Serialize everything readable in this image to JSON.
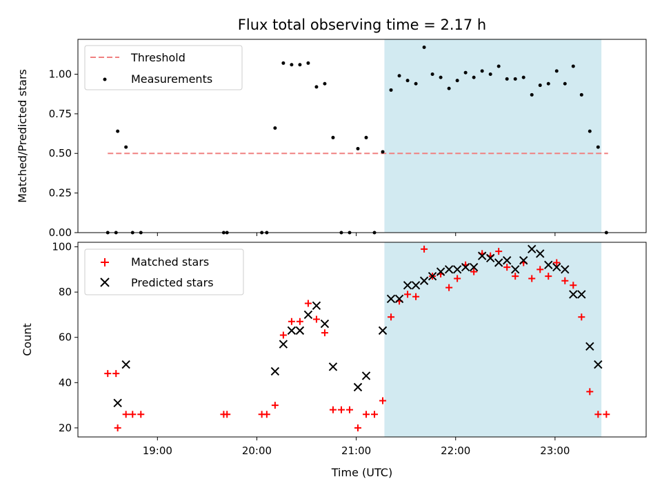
{
  "chart_data": [
    {
      "type": "scatter",
      "title": "Flux total observing time = 2.17 h",
      "ylabel": "Matched/Predicted stars",
      "xlabel": "",
      "xlim": [
        "18:12",
        "23:55"
      ],
      "ylim": [
        0,
        1.22
      ],
      "x_ticks": [
        "19:00",
        "20:00",
        "21:00",
        "22:00",
        "23:00"
      ],
      "y_ticks": [
        "0.00",
        "0.25",
        "0.50",
        "0.75",
        "1.00"
      ],
      "shaded_interval": {
        "start": "21:17",
        "end": "23:28",
        "color": "#add8e6"
      },
      "legend": {
        "placement": "top-left",
        "entries": [
          "Threshold",
          "Measurements"
        ]
      },
      "threshold": {
        "name": "Threshold",
        "value": 0.5,
        "x_start": "18:30",
        "x_end": "23:32",
        "color": "#f08080"
      },
      "series": [
        {
          "name": "Measurements",
          "color": "#000000",
          "x": [
            "18:30",
            "18:35",
            "18:36",
            "18:41",
            "18:45",
            "18:50",
            "19:40",
            "19:42",
            "20:03",
            "20:06",
            "20:11",
            "20:16",
            "20:21",
            "20:26",
            "20:31",
            "20:36",
            "20:41",
            "20:46",
            "20:51",
            "20:56",
            "21:01",
            "21:06",
            "21:11",
            "21:16",
            "21:21",
            "21:26",
            "21:31",
            "21:36",
            "21:41",
            "21:46",
            "21:51",
            "21:56",
            "22:01",
            "22:06",
            "22:11",
            "22:16",
            "22:21",
            "22:26",
            "22:31",
            "22:36",
            "22:41",
            "22:46",
            "22:51",
            "22:56",
            "23:01",
            "23:06",
            "23:11",
            "23:16",
            "23:21",
            "23:26",
            "23:31"
          ],
          "y": [
            0,
            0,
            0.64,
            0.54,
            0,
            0,
            0,
            0,
            0,
            0,
            0.66,
            1.07,
            1.06,
            1.06,
            1.07,
            0.92,
            0.94,
            0.6,
            0,
            0,
            0.53,
            0.6,
            0,
            0.51,
            0.9,
            0.99,
            0.96,
            0.94,
            1.17,
            1.0,
            0.98,
            0.91,
            0.96,
            1.01,
            0.98,
            1.02,
            1.0,
            1.05,
            0.97,
            0.97,
            0.98,
            0.87,
            0.93,
            0.94,
            1.02,
            0.94,
            1.05,
            0.87,
            0.64,
            0.54,
            0
          ]
        }
      ]
    },
    {
      "type": "scatter",
      "title": "",
      "xlabel": "Time (UTC)",
      "ylabel": "Count",
      "xlim": [
        "18:12",
        "23:55"
      ],
      "ylim": [
        16,
        102
      ],
      "x_ticks": [
        "19:00",
        "20:00",
        "21:00",
        "22:00",
        "23:00"
      ],
      "y_ticks": [
        "20",
        "40",
        "60",
        "80",
        "100"
      ],
      "shaded_interval": {
        "start": "21:17",
        "end": "23:28",
        "color": "#add8e6"
      },
      "legend": {
        "placement": "top-left",
        "entries": [
          "Matched stars",
          "Predicted stars"
        ]
      },
      "series": [
        {
          "name": "Matched stars",
          "marker": "plus",
          "color": "#ff0000",
          "x": [
            "18:30",
            "18:35",
            "18:36",
            "18:41",
            "18:45",
            "18:50",
            "19:40",
            "19:42",
            "20:03",
            "20:06",
            "20:11",
            "20:16",
            "20:21",
            "20:26",
            "20:31",
            "20:36",
            "20:41",
            "20:46",
            "20:51",
            "20:56",
            "21:01",
            "21:06",
            "21:11",
            "21:16",
            "21:21",
            "21:26",
            "21:31",
            "21:36",
            "21:41",
            "21:46",
            "21:51",
            "21:56",
            "22:01",
            "22:06",
            "22:11",
            "22:16",
            "22:21",
            "22:26",
            "22:31",
            "22:36",
            "22:41",
            "22:46",
            "22:51",
            "22:56",
            "23:01",
            "23:06",
            "23:11",
            "23:16",
            "23:21",
            "23:26",
            "23:31"
          ],
          "y": [
            44,
            44,
            20,
            26,
            26,
            26,
            26,
            26,
            26,
            26,
            30,
            61,
            67,
            67,
            75,
            68,
            62,
            28,
            28,
            28,
            20,
            26,
            26,
            32,
            69,
            76,
            79,
            78,
            99,
            87,
            88,
            82,
            86,
            92,
            89,
            97,
            96,
            98,
            91,
            87,
            93,
            86,
            90,
            87,
            93,
            85,
            83,
            69,
            36,
            26,
            26
          ]
        },
        {
          "name": "Predicted stars",
          "marker": "x",
          "color": "#000000",
          "x": [
            "18:36",
            "18:41",
            "20:11",
            "20:16",
            "20:21",
            "20:26",
            "20:31",
            "20:36",
            "20:41",
            "20:46",
            "21:01",
            "21:06",
            "21:16",
            "21:21",
            "21:26",
            "21:31",
            "21:36",
            "21:41",
            "21:46",
            "21:51",
            "21:56",
            "22:01",
            "22:06",
            "22:11",
            "22:16",
            "22:21",
            "22:26",
            "22:31",
            "22:36",
            "22:41",
            "22:46",
            "22:51",
            "22:56",
            "23:01",
            "23:06",
            "23:11",
            "23:16",
            "23:21",
            "23:26"
          ],
          "y": [
            31,
            48,
            45,
            57,
            63,
            63,
            70,
            74,
            66,
            47,
            38,
            43,
            63,
            77,
            77,
            83,
            83,
            85,
            87,
            89,
            90,
            90,
            91,
            91,
            96,
            95,
            93,
            94,
            90,
            94,
            99,
            97,
            92,
            91,
            90,
            79,
            79,
            56,
            48
          ]
        }
      ]
    }
  ]
}
